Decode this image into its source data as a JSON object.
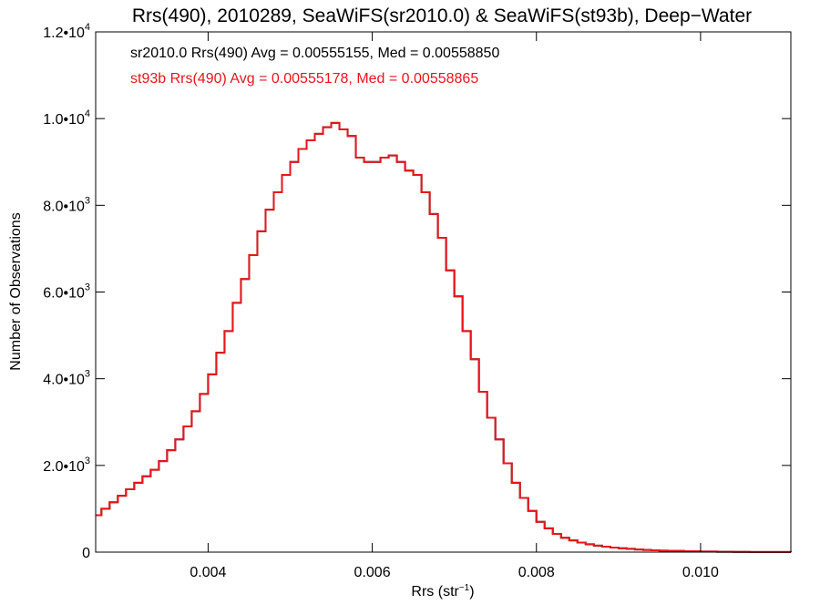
{
  "chart_data": {
    "type": "histogram",
    "title": "Rrs(490), 2010289, SeaWiFS(sr2010.0) & SeaWiFS(st93b), Deep−Water",
    "xlabel": {
      "base": "Rrs (str",
      "sup": "−1",
      "end": ")"
    },
    "ylabel": "Number of Observations",
    "xlim": [
      0.00263,
      0.0111
    ],
    "ylim": [
      0,
      12000
    ],
    "x_ticks": [
      {
        "value": 0.004,
        "label": "0.004"
      },
      {
        "value": 0.006,
        "label": "0.006"
      },
      {
        "value": 0.008,
        "label": "0.008"
      },
      {
        "value": 0.01,
        "label": "0.010"
      }
    ],
    "y_ticks": [
      {
        "value": 0,
        "mant": "0",
        "exp": ""
      },
      {
        "value": 2000,
        "mant": "2.0•10",
        "exp": "3"
      },
      {
        "value": 4000,
        "mant": "4.0•10",
        "exp": "3"
      },
      {
        "value": 6000,
        "mant": "6.0•10",
        "exp": "3"
      },
      {
        "value": 8000,
        "mant": "8.0•10",
        "exp": "3"
      },
      {
        "value": 10000,
        "mant": "1.0•10",
        "exp": "4"
      },
      {
        "value": 12000,
        "mant": "1.2•10",
        "exp": "4"
      }
    ],
    "legend_placement": "top-left",
    "series": [
      {
        "name": "sr2010.0 Rrs(490) Avg = 0.00555155, Med = 0.00558850",
        "color": "#000000",
        "x": [
          0.00263,
          0.0027,
          0.0028,
          0.0029,
          0.003,
          0.0031,
          0.0032,
          0.0033,
          0.0034,
          0.0035,
          0.0036,
          0.0037,
          0.0038,
          0.0039,
          0.004,
          0.0041,
          0.0042,
          0.0043,
          0.0044,
          0.0045,
          0.0046,
          0.0047,
          0.0048,
          0.0049,
          0.005,
          0.0051,
          0.0052,
          0.0053,
          0.0054,
          0.0055,
          0.0056,
          0.0057,
          0.0058,
          0.0059,
          0.006,
          0.0061,
          0.0062,
          0.0063,
          0.0064,
          0.0065,
          0.0066,
          0.0067,
          0.0068,
          0.0069,
          0.007,
          0.0071,
          0.0072,
          0.0073,
          0.0074,
          0.0075,
          0.0076,
          0.0077,
          0.0078,
          0.0079,
          0.008,
          0.0081,
          0.0082,
          0.0083,
          0.0084,
          0.0085,
          0.0086,
          0.0087,
          0.0088,
          0.0089,
          0.009,
          0.0091,
          0.0092,
          0.0093,
          0.0094,
          0.0095,
          0.0096,
          0.0098,
          0.01,
          0.0102,
          0.0104,
          0.0106,
          0.0108,
          0.0111
        ],
        "y": [
          850,
          1000,
          1150,
          1300,
          1450,
          1600,
          1750,
          1900,
          2100,
          2350,
          2600,
          2900,
          3250,
          3650,
          4100,
          4600,
          5100,
          5750,
          6300,
          6850,
          7400,
          7900,
          8300,
          8700,
          9000,
          9300,
          9500,
          9650,
          9800,
          9900,
          9750,
          9600,
          9100,
          9000,
          9000,
          9100,
          9150,
          9000,
          8800,
          8700,
          8300,
          7800,
          7250,
          6500,
          5900,
          5100,
          4450,
          3700,
          3100,
          2600,
          2050,
          1600,
          1250,
          950,
          700,
          550,
          420,
          330,
          270,
          220,
          180,
          150,
          125,
          105,
          90,
          75,
          60,
          50,
          42,
          35,
          28,
          20,
          12,
          8,
          5,
          3,
          2,
          0
        ]
      },
      {
        "name": "st93b Rrs(490) Avg = 0.00555178, Med = 0.00558865",
        "color": "#e8161c",
        "x": [
          0.00263,
          0.0027,
          0.0028,
          0.0029,
          0.003,
          0.0031,
          0.0032,
          0.0033,
          0.0034,
          0.0035,
          0.0036,
          0.0037,
          0.0038,
          0.0039,
          0.004,
          0.0041,
          0.0042,
          0.0043,
          0.0044,
          0.0045,
          0.0046,
          0.0047,
          0.0048,
          0.0049,
          0.005,
          0.0051,
          0.0052,
          0.0053,
          0.0054,
          0.0055,
          0.0056,
          0.0057,
          0.0058,
          0.0059,
          0.006,
          0.0061,
          0.0062,
          0.0063,
          0.0064,
          0.0065,
          0.0066,
          0.0067,
          0.0068,
          0.0069,
          0.007,
          0.0071,
          0.0072,
          0.0073,
          0.0074,
          0.0075,
          0.0076,
          0.0077,
          0.0078,
          0.0079,
          0.008,
          0.0081,
          0.0082,
          0.0083,
          0.0084,
          0.0085,
          0.0086,
          0.0087,
          0.0088,
          0.0089,
          0.009,
          0.0091,
          0.0092,
          0.0093,
          0.0094,
          0.0095,
          0.0096,
          0.0098,
          0.01,
          0.0102,
          0.0104,
          0.0106,
          0.0108,
          0.0111
        ],
        "y": [
          850,
          1000,
          1150,
          1300,
          1450,
          1600,
          1750,
          1900,
          2100,
          2350,
          2600,
          2900,
          3250,
          3650,
          4100,
          4600,
          5100,
          5750,
          6300,
          6850,
          7400,
          7900,
          8300,
          8700,
          9000,
          9300,
          9500,
          9650,
          9800,
          9900,
          9750,
          9600,
          9100,
          9000,
          9000,
          9100,
          9150,
          9000,
          8800,
          8700,
          8300,
          7800,
          7250,
          6500,
          5900,
          5100,
          4450,
          3700,
          3100,
          2600,
          2050,
          1600,
          1250,
          950,
          700,
          550,
          420,
          330,
          270,
          220,
          180,
          150,
          125,
          105,
          90,
          75,
          60,
          50,
          42,
          35,
          28,
          20,
          12,
          8,
          5,
          3,
          2,
          0
        ]
      }
    ]
  }
}
